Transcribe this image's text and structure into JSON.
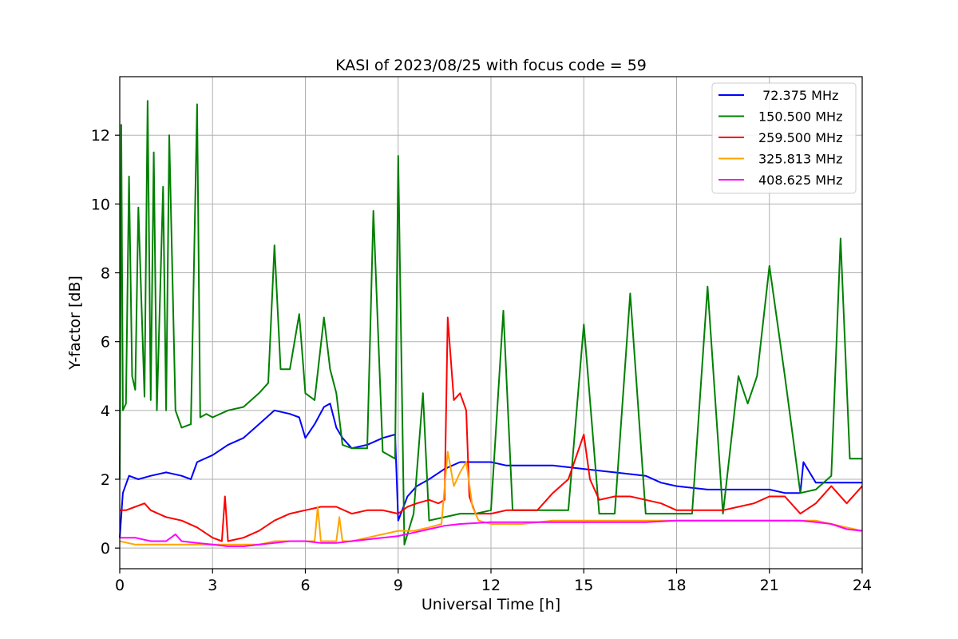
{
  "chart_data": {
    "type": "line",
    "title": "KASI of 2023/08/25 with focus code = 59",
    "xlabel": "Universal Time [h]",
    "ylabel": "Y-factor [dB]",
    "xlim": [
      0,
      24
    ],
    "ylim": [
      -0.6,
      13.7
    ],
    "xticks": [
      0,
      3,
      6,
      9,
      12,
      15,
      18,
      21,
      24
    ],
    "yticks": [
      0,
      2,
      4,
      6,
      8,
      10,
      12
    ],
    "grid": true,
    "legend_position": "top-right",
    "series": [
      {
        "name": " 72.375 MHz",
        "color": "#0000ff",
        "x": [
          0,
          0.1,
          0.3,
          0.6,
          1.0,
          1.5,
          2.0,
          2.3,
          2.5,
          3.0,
          3.5,
          4.0,
          4.5,
          5.0,
          5.5,
          5.8,
          6.0,
          6.3,
          6.6,
          6.8,
          7.0,
          7.2,
          7.5,
          8.0,
          8.5,
          8.9,
          9.0,
          9.3,
          9.6,
          10.0,
          10.5,
          11.0,
          11.5,
          12.0,
          12.5,
          13.0,
          13.5,
          14.0,
          15.0,
          16.0,
          17.0,
          17.5,
          18.0,
          19.0,
          20.0,
          21.0,
          21.5,
          22.0,
          22.1,
          22.5,
          23.0,
          23.5,
          24.0
        ],
        "y": [
          0.3,
          1.6,
          2.1,
          2.0,
          2.1,
          2.2,
          2.1,
          2.0,
          2.5,
          2.7,
          3.0,
          3.2,
          3.6,
          4.0,
          3.9,
          3.8,
          3.2,
          3.6,
          4.1,
          4.2,
          3.5,
          3.2,
          2.9,
          3.0,
          3.2,
          3.3,
          0.8,
          1.5,
          1.8,
          2.0,
          2.3,
          2.5,
          2.5,
          2.5,
          2.4,
          2.4,
          2.4,
          2.4,
          2.3,
          2.2,
          2.1,
          1.9,
          1.8,
          1.7,
          1.7,
          1.7,
          1.6,
          1.6,
          2.5,
          1.9,
          1.9,
          1.9,
          1.9
        ]
      },
      {
        "name": "150.500 MHz",
        "color": "#008000",
        "x": [
          0,
          0.05,
          0.1,
          0.2,
          0.3,
          0.4,
          0.5,
          0.6,
          0.8,
          0.9,
          1.0,
          1.1,
          1.2,
          1.4,
          1.5,
          1.6,
          1.8,
          2.0,
          2.3,
          2.5,
          2.6,
          2.8,
          3.0,
          3.5,
          4.0,
          4.5,
          4.8,
          5.0,
          5.2,
          5.5,
          5.8,
          6.0,
          6.3,
          6.6,
          6.8,
          7.0,
          7.2,
          7.5,
          8.0,
          8.2,
          8.5,
          8.9,
          9.0,
          9.2,
          9.5,
          9.8,
          10.0,
          10.5,
          11.0,
          11.5,
          12.0,
          12.4,
          12.7,
          13.0,
          13.5,
          14.0,
          14.5,
          15.0,
          15.5,
          16.0,
          16.5,
          17.0,
          17.5,
          18.0,
          18.5,
          19.0,
          19.5,
          20.0,
          20.3,
          20.6,
          21.0,
          21.5,
          22.0,
          22.5,
          23.0,
          23.3,
          23.6,
          24.0
        ],
        "y": [
          2.0,
          12.3,
          4.0,
          4.2,
          10.8,
          5.0,
          4.6,
          9.9,
          4.4,
          13.0,
          4.3,
          11.5,
          4.0,
          10.5,
          4.0,
          12.0,
          4.0,
          3.5,
          3.6,
          12.9,
          3.8,
          3.9,
          3.8,
          4.0,
          4.1,
          4.5,
          4.8,
          8.8,
          5.2,
          5.2,
          6.8,
          4.5,
          4.3,
          6.7,
          5.2,
          4.5,
          3.0,
          2.9,
          2.9,
          9.8,
          2.8,
          2.6,
          11.4,
          0.1,
          1.0,
          4.5,
          0.8,
          0.9,
          1.0,
          1.0,
          1.1,
          6.9,
          1.1,
          1.1,
          1.1,
          1.1,
          1.1,
          6.5,
          1.0,
          1.0,
          7.4,
          1.0,
          1.0,
          1.0,
          1.0,
          7.6,
          1.0,
          5.0,
          4.2,
          5.0,
          8.2,
          5.0,
          1.6,
          1.7,
          2.1,
          9.0,
          2.6,
          2.6
        ]
      },
      {
        "name": "259.500 MHz",
        "color": "#ff0000",
        "x": [
          0,
          0.2,
          0.5,
          0.8,
          1.0,
          1.5,
          2.0,
          2.5,
          3.0,
          3.3,
          3.4,
          3.5,
          4.0,
          4.5,
          5.0,
          5.5,
          6.0,
          6.5,
          7.0,
          7.5,
          8.0,
          8.5,
          9.0,
          9.3,
          9.6,
          10.0,
          10.3,
          10.5,
          10.6,
          10.8,
          11.0,
          11.2,
          11.3,
          11.5,
          12.0,
          12.5,
          13.0,
          13.5,
          14.0,
          14.5,
          15.0,
          15.2,
          15.5,
          16.0,
          16.5,
          17.0,
          17.5,
          18.0,
          18.5,
          19.0,
          19.5,
          20.0,
          20.5,
          21.0,
          21.5,
          22.0,
          22.5,
          23.0,
          23.5,
          24.0
        ],
        "y": [
          1.1,
          1.1,
          1.2,
          1.3,
          1.1,
          0.9,
          0.8,
          0.6,
          0.3,
          0.2,
          1.5,
          0.2,
          0.3,
          0.5,
          0.8,
          1.0,
          1.1,
          1.2,
          1.2,
          1.0,
          1.1,
          1.1,
          1.0,
          1.2,
          1.3,
          1.4,
          1.3,
          1.4,
          6.7,
          4.3,
          4.5,
          4.0,
          1.5,
          1.0,
          1.0,
          1.1,
          1.1,
          1.1,
          1.6,
          2.0,
          3.3,
          2.0,
          1.4,
          1.5,
          1.5,
          1.4,
          1.3,
          1.1,
          1.1,
          1.1,
          1.1,
          1.2,
          1.3,
          1.5,
          1.5,
          1.0,
          1.3,
          1.8,
          1.3,
          1.8
        ]
      },
      {
        "name": "325.813 MHz",
        "color": "#ffa500",
        "x": [
          0,
          0.5,
          1.0,
          1.5,
          2.0,
          2.5,
          3.0,
          3.5,
          4.0,
          4.5,
          5.0,
          5.5,
          6.0,
          6.3,
          6.4,
          6.5,
          7.0,
          7.1,
          7.2,
          7.5,
          8.0,
          8.5,
          9.0,
          9.5,
          10.0,
          10.4,
          10.6,
          10.8,
          11.0,
          11.2,
          11.4,
          11.6,
          12.0,
          13.0,
          14.0,
          15.0,
          16.0,
          17.0,
          18.0,
          19.0,
          20.0,
          21.0,
          22.0,
          22.5,
          23.0,
          23.5,
          24.0
        ],
        "y": [
          0.2,
          0.1,
          0.1,
          0.1,
          0.1,
          0.1,
          0.1,
          0.1,
          0.1,
          0.1,
          0.2,
          0.2,
          0.2,
          0.2,
          1.2,
          0.2,
          0.2,
          0.9,
          0.2,
          0.2,
          0.3,
          0.4,
          0.5,
          0.5,
          0.6,
          0.7,
          2.8,
          1.8,
          2.2,
          2.5,
          1.2,
          0.8,
          0.7,
          0.7,
          0.8,
          0.8,
          0.8,
          0.8,
          0.8,
          0.8,
          0.8,
          0.8,
          0.8,
          0.8,
          0.7,
          0.6,
          0.5
        ]
      },
      {
        "name": "408.625 MHz",
        "color": "#ff00ff",
        "x": [
          0,
          0.5,
          1.0,
          1.5,
          1.8,
          2.0,
          2.5,
          3.0,
          3.5,
          4.0,
          4.5,
          5.0,
          5.5,
          6.0,
          6.5,
          7.0,
          7.5,
          8.0,
          8.5,
          9.0,
          9.5,
          10.0,
          10.5,
          11.0,
          12.0,
          13.0,
          14.0,
          15.0,
          16.0,
          17.0,
          18.0,
          19.0,
          20.0,
          21.0,
          22.0,
          22.5,
          23.0,
          23.5,
          24.0
        ],
        "y": [
          0.3,
          0.3,
          0.2,
          0.2,
          0.4,
          0.2,
          0.15,
          0.1,
          0.05,
          0.05,
          0.1,
          0.15,
          0.2,
          0.2,
          0.15,
          0.15,
          0.2,
          0.25,
          0.3,
          0.35,
          0.45,
          0.55,
          0.65,
          0.7,
          0.75,
          0.75,
          0.75,
          0.75,
          0.75,
          0.75,
          0.8,
          0.8,
          0.8,
          0.8,
          0.8,
          0.75,
          0.7,
          0.55,
          0.5
        ]
      }
    ]
  }
}
